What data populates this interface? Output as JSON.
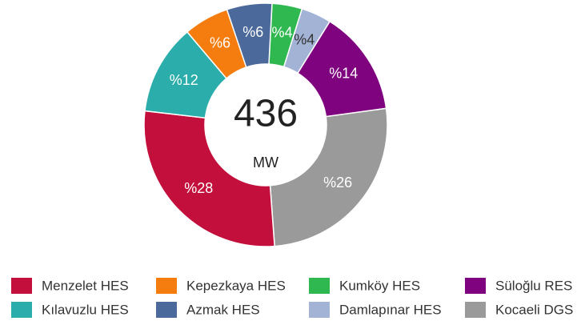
{
  "chart_data": {
    "type": "donut",
    "categories": [
      "Kumköy HES",
      "Damlapınar HES",
      "Süloğlu RES",
      "Kocaeli DGS",
      "Menzelet HES",
      "Kılavuzlu HES",
      "Kepezkaya HES",
      "Azmak HES"
    ],
    "values": [
      4,
      4,
      14,
      26,
      28,
      12,
      6,
      6
    ],
    "value_labels": [
      "%4",
      "%4",
      "%14",
      "%26",
      "%28",
      "%12",
      "%6",
      "%6"
    ],
    "colors": [
      "#2fb850",
      "#a2b3d6",
      "#7f027f",
      "#9a9a9a",
      "#c20f3b",
      "#2badab",
      "#f57d0f",
      "#4b6a9b"
    ],
    "center_value": 436,
    "center_unit": "MW"
  }
}
